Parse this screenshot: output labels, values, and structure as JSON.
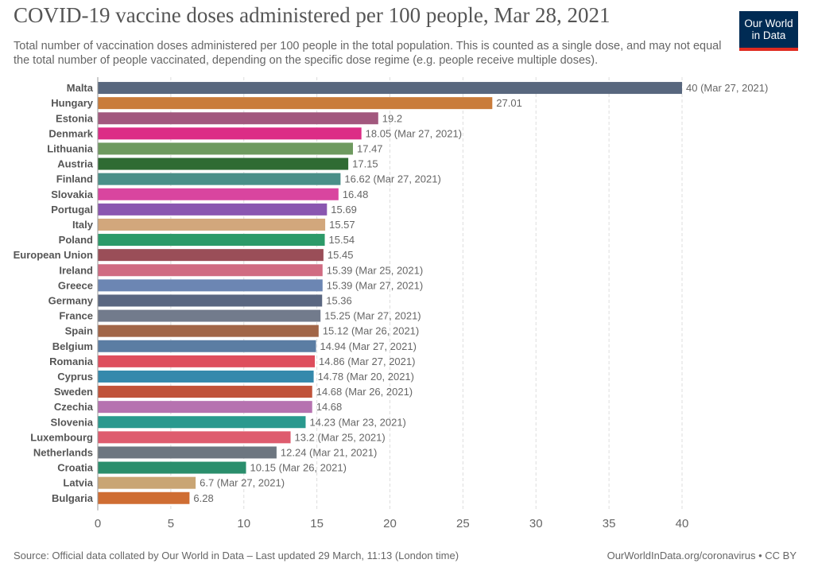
{
  "header": {
    "title": "COVID-19 vaccine doses administered per 100 people, Mar 28, 2021",
    "subtitle": "Total number of vaccination doses administered per 100 people in the total population. This is counted as a single dose, and may not equal the total number of people vaccinated, depending on the specific dose regime (e.g. people receive multiple doses).",
    "logo_line1": "Our World",
    "logo_line2": "in Data"
  },
  "footer": {
    "source": "Source: Official data collated by Our World in Data – Last updated 29 March, 11:13 (London time)",
    "credit": "OurWorldInData.org/coronavirus • CC BY"
  },
  "chart_data": {
    "type": "bar",
    "orientation": "horizontal",
    "title": "COVID-19 vaccine doses administered per 100 people, Mar 28, 2021",
    "xlabel": "",
    "ylabel": "",
    "xlim": [
      0,
      40
    ],
    "xticks": [
      0,
      5,
      10,
      15,
      20,
      25,
      30,
      35,
      40
    ],
    "grid": "vertical dashed",
    "categories": [
      "Malta",
      "Hungary",
      "Estonia",
      "Denmark",
      "Lithuania",
      "Austria",
      "Finland",
      "Slovakia",
      "Portugal",
      "Italy",
      "Poland",
      "European Union",
      "Ireland",
      "Greece",
      "Germany",
      "France",
      "Spain",
      "Belgium",
      "Romania",
      "Cyprus",
      "Sweden",
      "Czechia",
      "Slovenia",
      "Luxembourg",
      "Netherlands",
      "Croatia",
      "Latvia",
      "Bulgaria"
    ],
    "values": [
      40,
      27.01,
      19.2,
      18.05,
      17.47,
      17.15,
      16.62,
      16.48,
      15.69,
      15.57,
      15.54,
      15.45,
      15.39,
      15.39,
      15.36,
      15.25,
      15.12,
      14.94,
      14.86,
      14.78,
      14.68,
      14.68,
      14.23,
      13.2,
      12.24,
      10.15,
      6.7,
      6.28
    ],
    "value_labels": [
      "40 (Mar 27, 2021)",
      "27.01",
      "19.2",
      "18.05 (Mar 27, 2021)",
      "17.47",
      "17.15",
      "16.62 (Mar 27, 2021)",
      "16.48",
      "15.69",
      "15.57",
      "15.54",
      "15.45",
      "15.39 (Mar 25, 2021)",
      "15.39 (Mar 27, 2021)",
      "15.36",
      "15.25 (Mar 27, 2021)",
      "15.12 (Mar 26, 2021)",
      "14.94 (Mar 27, 2021)",
      "14.86 (Mar 27, 2021)",
      "14.78 (Mar 20, 2021)",
      "14.68 (Mar 26, 2021)",
      "14.68",
      "14.23 (Mar 23, 2021)",
      "13.2 (Mar 25, 2021)",
      "12.24 (Mar 21, 2021)",
      "10.15 (Mar 26, 2021)",
      "6.7 (Mar 27, 2021)",
      "6.28"
    ],
    "colors": [
      "#58677e",
      "#c97c3b",
      "#a2587e",
      "#dc2d86",
      "#6e9a5f",
      "#2f6b33",
      "#4a8f88",
      "#d9459f",
      "#8a56b0",
      "#d2a77c",
      "#2c9a69",
      "#9a4e58",
      "#d06b82",
      "#6c86b3",
      "#5a6781",
      "#727b8c",
      "#a16547",
      "#5b7da3",
      "#de4e5d",
      "#3589ac",
      "#c0533a",
      "#b672b0",
      "#2a998e",
      "#de5c6e",
      "#6d7680",
      "#2a8e6c",
      "#c9a574",
      "#cf6d33"
    ]
  }
}
